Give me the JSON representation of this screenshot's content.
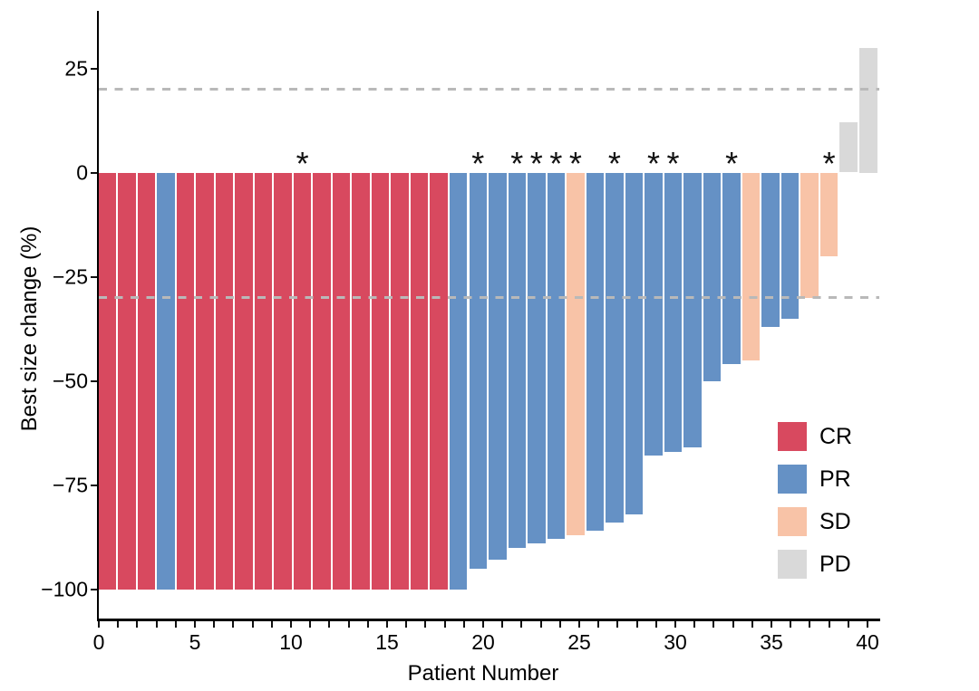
{
  "chart_data": {
    "type": "bar",
    "title": "",
    "xlabel": "Patient Number",
    "ylabel": "Best size change (%)",
    "x": [
      1,
      2,
      3,
      4,
      5,
      6,
      7,
      8,
      9,
      10,
      11,
      12,
      13,
      14,
      15,
      16,
      17,
      18,
      19,
      20,
      21,
      22,
      23,
      24,
      25,
      26,
      27,
      28,
      29,
      30,
      31,
      32,
      33,
      34,
      35,
      36,
      37,
      38,
      39,
      40
    ],
    "values": [
      -100,
      -100,
      -100,
      -100,
      -100,
      -100,
      -100,
      -100,
      -100,
      -100,
      -100,
      -100,
      -100,
      -100,
      -100,
      -100,
      -100,
      -100,
      -100,
      -95,
      -93,
      -90,
      -89,
      -88,
      -87,
      -86,
      -84,
      -82,
      -68,
      -67,
      -66,
      -50,
      -46,
      -45,
      -37,
      -35,
      -30,
      -20,
      12,
      30
    ],
    "response": [
      "CR",
      "CR",
      "CR",
      "PR",
      "CR",
      "CR",
      "CR",
      "CR",
      "CR",
      "CR",
      "CR",
      "CR",
      "CR",
      "CR",
      "CR",
      "CR",
      "CR",
      "CR",
      "PR",
      "PR",
      "PR",
      "PR",
      "PR",
      "PR",
      "SD",
      "PR",
      "PR",
      "PR",
      "PR",
      "PR",
      "PR",
      "PR",
      "PR",
      "SD",
      "PR",
      "PR",
      "SD",
      "SD",
      "PD",
      "PD"
    ],
    "starred_patients": [
      11,
      20,
      22,
      23,
      24,
      25,
      27,
      29,
      30,
      33,
      38
    ],
    "star_glyph": "*",
    "reference_lines": [
      20,
      -30
    ],
    "y_ticks": [
      25,
      0,
      -25,
      -50,
      -75,
      -100
    ],
    "x_ticks_major": [
      0,
      5,
      10,
      15,
      20,
      25,
      30,
      35,
      40
    ],
    "x_minor_tick_step": 1,
    "ylim": [
      -107,
      38.8
    ],
    "xlim": [
      0,
      40.6
    ],
    "grid": "off",
    "legend": {
      "position": "right-center",
      "entries": [
        {
          "label": "CR",
          "color": "#d8495f"
        },
        {
          "label": "PR",
          "color": "#6591c5"
        },
        {
          "label": "SD",
          "color": "#f8c3a7"
        },
        {
          "label": "PD",
          "color": "#d9d9d9"
        }
      ]
    },
    "colors": {
      "reference_line": "#b9b9b9",
      "axis": "#000000",
      "star": "#111111"
    }
  }
}
